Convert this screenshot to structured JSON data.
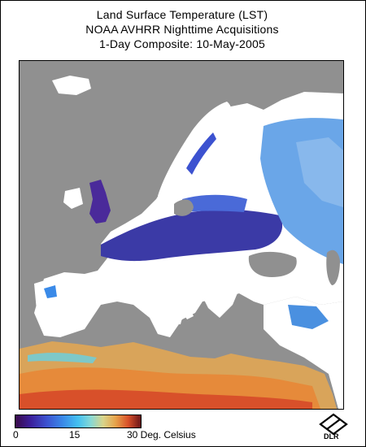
{
  "title": {
    "line1": "Land Surface Temperature (LST)",
    "line2": "NOAA AVHRR Nighttime Acquisitions",
    "line3": "1-Day Composite: 10-May-2005"
  },
  "legend": {
    "min_label": "0",
    "mid_label": "15",
    "max_label": "30 Deg. Celsius",
    "range_celsius": [
      0,
      30
    ]
  },
  "logo": {
    "text": "DLR",
    "icon": "dlr-logo-icon"
  },
  "colors": {
    "sea": "#909090",
    "no_data": "#ffffff",
    "cold": "#3a0a4a",
    "warm": "#6a1418"
  }
}
